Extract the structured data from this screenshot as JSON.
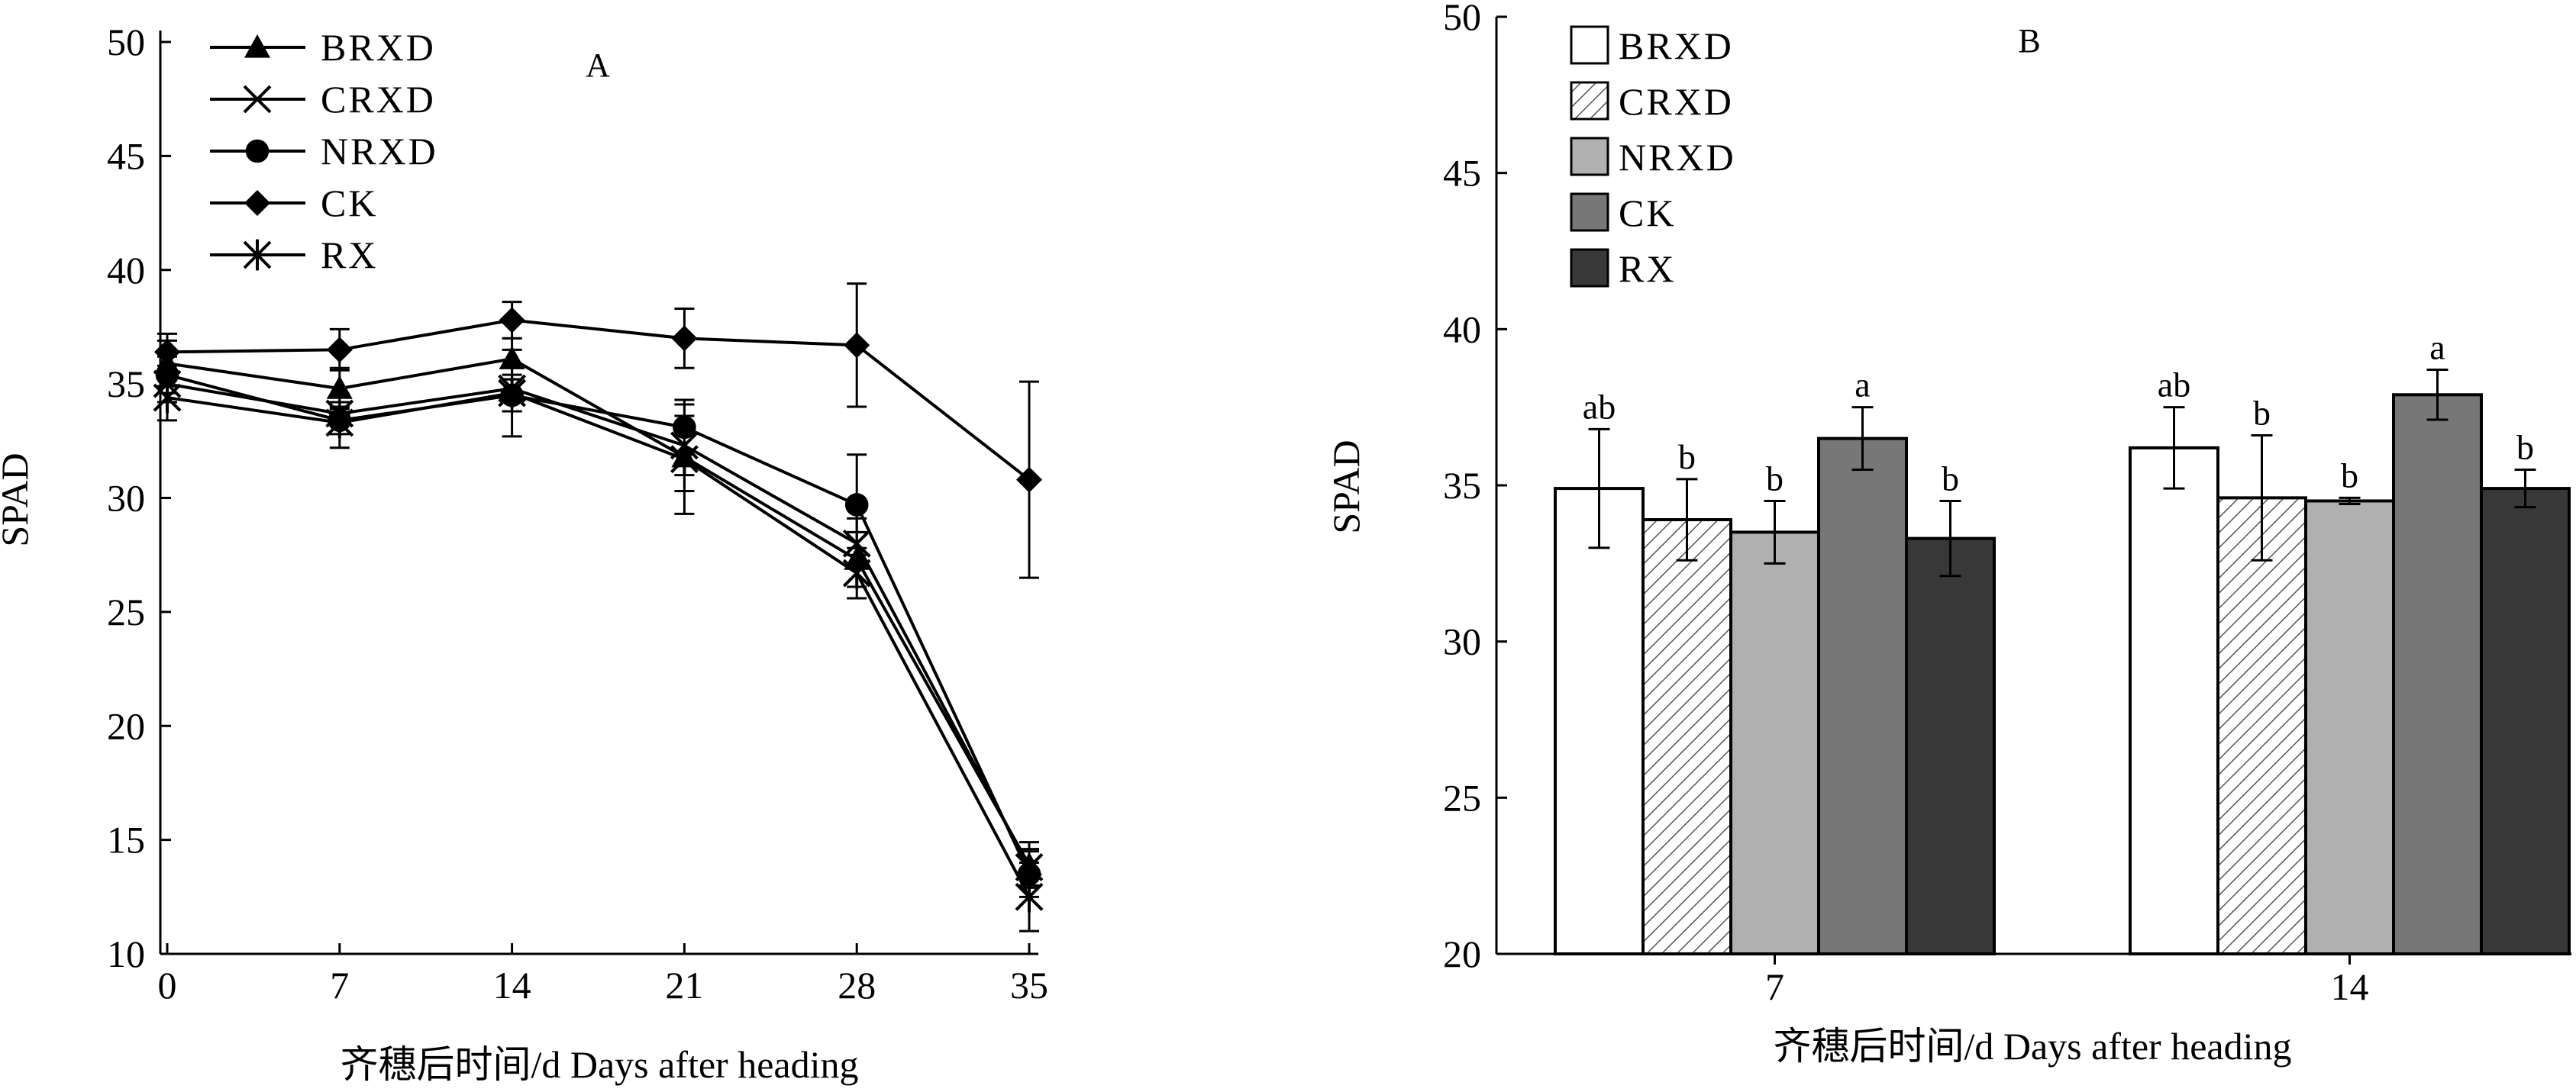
{
  "chart_data": [
    {
      "type": "line",
      "panel_label": "A",
      "xlabel": "齐穗后时间/d Days after heading",
      "ylabel": "SPAD",
      "x": [
        0,
        7,
        14,
        21,
        28,
        35
      ],
      "x_ticks": [
        "0",
        "7",
        "14",
        "21",
        "28",
        "35"
      ],
      "xlim": [
        0,
        35
      ],
      "ylim": [
        10,
        50
      ],
      "y_ticks": [
        "10",
        "15",
        "20",
        "25",
        "30",
        "35",
        "40",
        "45",
        "50"
      ],
      "legend_position": "top-left",
      "series": [
        {
          "name": "BRXD",
          "marker": "triangle",
          "values": [
            35.9,
            34.8,
            36.1,
            31.8,
            27.3,
            13.9
          ],
          "errors": [
            1.0,
            0.9,
            0.9,
            1.5,
            1.2,
            1.0
          ]
        },
        {
          "name": "CRXD",
          "marker": "x",
          "values": [
            35.0,
            33.7,
            34.8,
            32.3,
            28.0,
            13.8
          ],
          "errors": [
            0.8,
            0.5,
            0.6,
            1.3,
            1.1,
            0.8
          ]
        },
        {
          "name": "NRXD",
          "marker": "circle",
          "values": [
            35.4,
            33.4,
            34.5,
            33.1,
            29.7,
            13.5
          ],
          "errors": [
            0.8,
            0.6,
            0.7,
            1.2,
            2.2,
            1.0
          ]
        },
        {
          "name": "CK",
          "marker": "diamond",
          "values": [
            36.4,
            36.5,
            37.8,
            37.0,
            36.7,
            30.8
          ],
          "errors": [
            0.8,
            0.9,
            0.8,
            1.3,
            2.7,
            4.3
          ]
        },
        {
          "name": "RX",
          "marker": "asterisk",
          "values": [
            34.4,
            33.3,
            34.6,
            31.7,
            26.7,
            12.5
          ],
          "errors": [
            1.0,
            1.1,
            1.9,
            2.4,
            1.1,
            1.5
          ]
        }
      ]
    },
    {
      "type": "bar",
      "panel_label": "B",
      "xlabel": "齐穗后时间/d Days after heading",
      "ylabel": "SPAD",
      "categories": [
        "7",
        "14"
      ],
      "ylim": [
        20,
        50
      ],
      "y_ticks": [
        "20",
        "25",
        "30",
        "35",
        "40",
        "45",
        "50"
      ],
      "legend_position": "top-left",
      "series": [
        {
          "name": "BRXD",
          "fill": "#ffffff",
          "pattern": "none",
          "values": [
            34.9,
            36.2
          ],
          "errors": [
            1.9,
            1.3
          ],
          "labels": [
            "ab",
            "ab"
          ]
        },
        {
          "name": "CRXD",
          "fill": "#ffffff",
          "pattern": "hatch",
          "values": [
            33.9,
            34.6
          ],
          "errors": [
            1.3,
            2.0
          ],
          "labels": [
            "b",
            "b"
          ]
        },
        {
          "name": "NRXD",
          "fill": "#b0b0b0",
          "pattern": "none",
          "values": [
            33.5,
            34.5
          ],
          "errors": [
            1.0,
            0.1
          ],
          "labels": [
            "b",
            "b"
          ]
        },
        {
          "name": "CK",
          "fill": "#777777",
          "pattern": "none",
          "values": [
            36.5,
            37.9
          ],
          "errors": [
            1.0,
            0.8
          ],
          "labels": [
            "a",
            "a"
          ]
        },
        {
          "name": "RX",
          "fill": "#383838",
          "pattern": "none",
          "values": [
            33.3,
            34.9
          ],
          "errors": [
            1.2,
            0.6
          ],
          "labels": [
            "b",
            "b"
          ]
        }
      ]
    }
  ]
}
